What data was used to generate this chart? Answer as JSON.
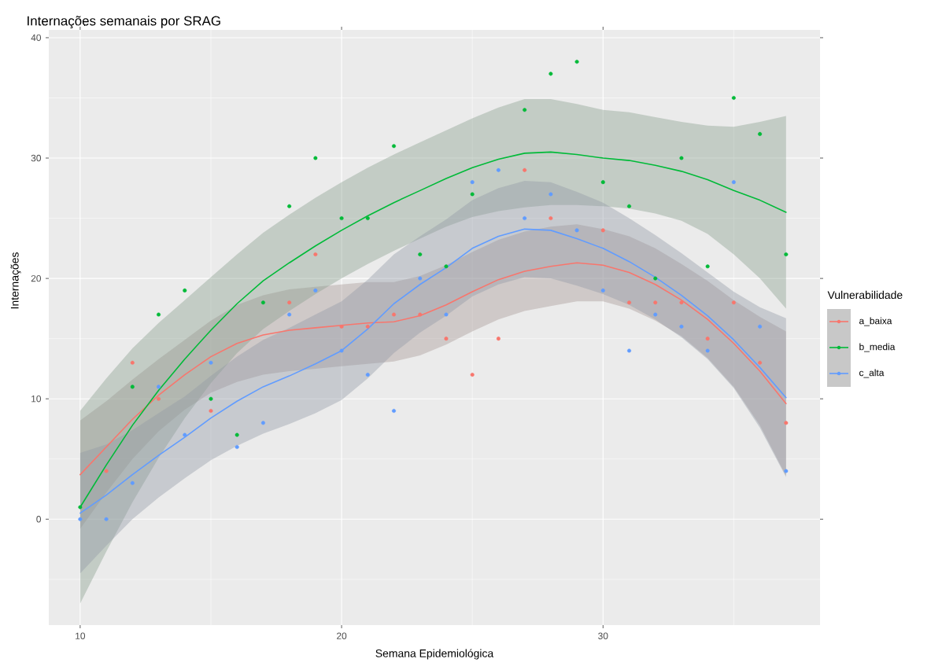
{
  "chart_data": {
    "type": "scatter",
    "title": "Internações semanais por SRAG",
    "xlabel": "Semana Epidemiológica",
    "ylabel": "Internações",
    "legend_title": "Vulnerabilidade",
    "x": [
      10,
      11,
      12,
      13,
      14,
      15,
      16,
      17,
      18,
      19,
      20,
      21,
      22,
      23,
      24,
      25,
      26,
      27,
      28,
      29,
      30,
      31,
      32,
      33,
      34,
      35,
      36,
      37
    ],
    "series": [
      {
        "name": "a_baixa",
        "marker": "circle",
        "color": "#f8766d",
        "values": [
          null,
          4,
          13,
          10,
          null,
          9,
          null,
          null,
          18,
          22,
          16,
          16,
          17,
          17,
          15,
          12,
          15,
          29,
          25,
          null,
          24,
          18,
          18,
          18,
          15,
          18,
          13,
          8
        ]
      },
      {
        "name": "b_media",
        "marker": "circle",
        "color": "#00ba38",
        "values": [
          1,
          null,
          11,
          17,
          19,
          10,
          7,
          18,
          26,
          30,
          25,
          25,
          31,
          22,
          21,
          27,
          null,
          34,
          37,
          38,
          28,
          26,
          20,
          30,
          21,
          35,
          32,
          22
        ]
      },
      {
        "name": "c_alta",
        "marker": "circle",
        "color": "#619cff",
        "values": [
          0,
          0,
          3,
          11,
          7,
          13,
          6,
          8,
          17,
          19,
          14,
          12,
          9,
          20,
          17,
          28,
          29,
          25,
          27,
          24,
          19,
          14,
          17,
          16,
          14,
          28,
          16,
          4
        ]
      },
      {
        "type": "line",
        "marker": "none",
        "color": "#f8766d",
        "values": [
          3.7,
          6,
          8.3,
          10.3,
          12,
          13.5,
          14.6,
          15.3,
          15.7,
          15.9,
          16.1,
          16.3,
          16.4,
          16.9,
          17.8,
          18.9,
          19.9,
          20.6,
          21,
          21.3,
          21.1,
          20.5,
          19.5,
          18.2,
          16.6,
          14.6,
          12.3,
          9.6
        ],
        "lower": [
          -0.8,
          2.2,
          5,
          7.3,
          9.1,
          10.5,
          11.4,
          12,
          12.3,
          12.5,
          12.7,
          12.9,
          13.1,
          13.6,
          14.5,
          15.6,
          16.6,
          17.3,
          17.7,
          18.1,
          18.1,
          17.5,
          16.5,
          15.2,
          13.4,
          11,
          7.8,
          3.6
        ],
        "upper": [
          8.2,
          9.8,
          11.6,
          13.3,
          14.9,
          16.5,
          17.8,
          18.6,
          19.1,
          19.3,
          19.5,
          19.7,
          19.7,
          20.2,
          21.1,
          22.2,
          23.2,
          23.9,
          24.3,
          24.5,
          24.1,
          23.5,
          22.5,
          21.2,
          19.8,
          18.2,
          16.8,
          15.6
        ]
      },
      {
        "type": "line",
        "marker": "none",
        "color": "#00ba38",
        "values": [
          1,
          4.5,
          7.8,
          10.7,
          13.3,
          15.7,
          17.9,
          19.8,
          21.3,
          22.7,
          24,
          25.2,
          26.3,
          27.3,
          28.3,
          29.2,
          29.9,
          30.4,
          30.5,
          30.3,
          30,
          29.8,
          29.4,
          28.9,
          28.2,
          27.3,
          26.5,
          25.5
        ],
        "lower": [
          -7,
          -2.7,
          1.4,
          5.1,
          8.4,
          11.3,
          13.8,
          15.8,
          17.3,
          18.7,
          20,
          21.2,
          22.3,
          23.3,
          24.3,
          25.1,
          25.6,
          25.9,
          26.1,
          26.1,
          26,
          25.8,
          25.4,
          24.8,
          23.7,
          22,
          20,
          17.5
        ],
        "upper": [
          9,
          11.7,
          14.2,
          16.3,
          18.2,
          20.1,
          22,
          23.8,
          25.3,
          26.7,
          28,
          29.2,
          30.3,
          31.3,
          32.3,
          33.3,
          34.2,
          34.9,
          34.9,
          34.5,
          34,
          33.8,
          33.4,
          33,
          32.7,
          32.6,
          33,
          33.5
        ]
      },
      {
        "type": "line",
        "marker": "none",
        "color": "#619cff",
        "values": [
          0.5,
          2,
          3.7,
          5.3,
          6.8,
          8.4,
          9.8,
          11,
          11.9,
          12.9,
          14,
          15.8,
          17.9,
          19.5,
          20.9,
          22.5,
          23.5,
          24.1,
          24,
          23.3,
          22.5,
          21.4,
          20.1,
          18.6,
          16.9,
          14.9,
          12.6,
          10.1
        ],
        "lower": [
          -4.5,
          -2.2,
          0,
          1.8,
          3.4,
          4.9,
          6.1,
          7.1,
          7.9,
          8.8,
          9.9,
          11.7,
          13.8,
          15.5,
          16.9,
          18.5,
          19.5,
          20.1,
          20,
          19.4,
          18.7,
          17.8,
          16.6,
          15.1,
          13.3,
          10.9,
          7.6,
          3.5
        ],
        "upper": [
          5.5,
          6.2,
          7.4,
          8.8,
          10.2,
          11.9,
          13.5,
          14.9,
          15.9,
          17,
          18.1,
          19.9,
          22,
          23.5,
          24.9,
          26.5,
          27.5,
          28.1,
          28,
          27.2,
          26.3,
          25,
          23.6,
          22.1,
          20.5,
          18.9,
          17.6,
          16.7
        ]
      }
    ],
    "xlim": [
      8.8,
      38.3
    ],
    "ylim": [
      -8.8,
      40.65
    ],
    "xticks": [
      10,
      20,
      30
    ],
    "yticks": [
      0,
      10,
      20,
      30,
      40
    ],
    "grid": true,
    "legend": "right"
  }
}
